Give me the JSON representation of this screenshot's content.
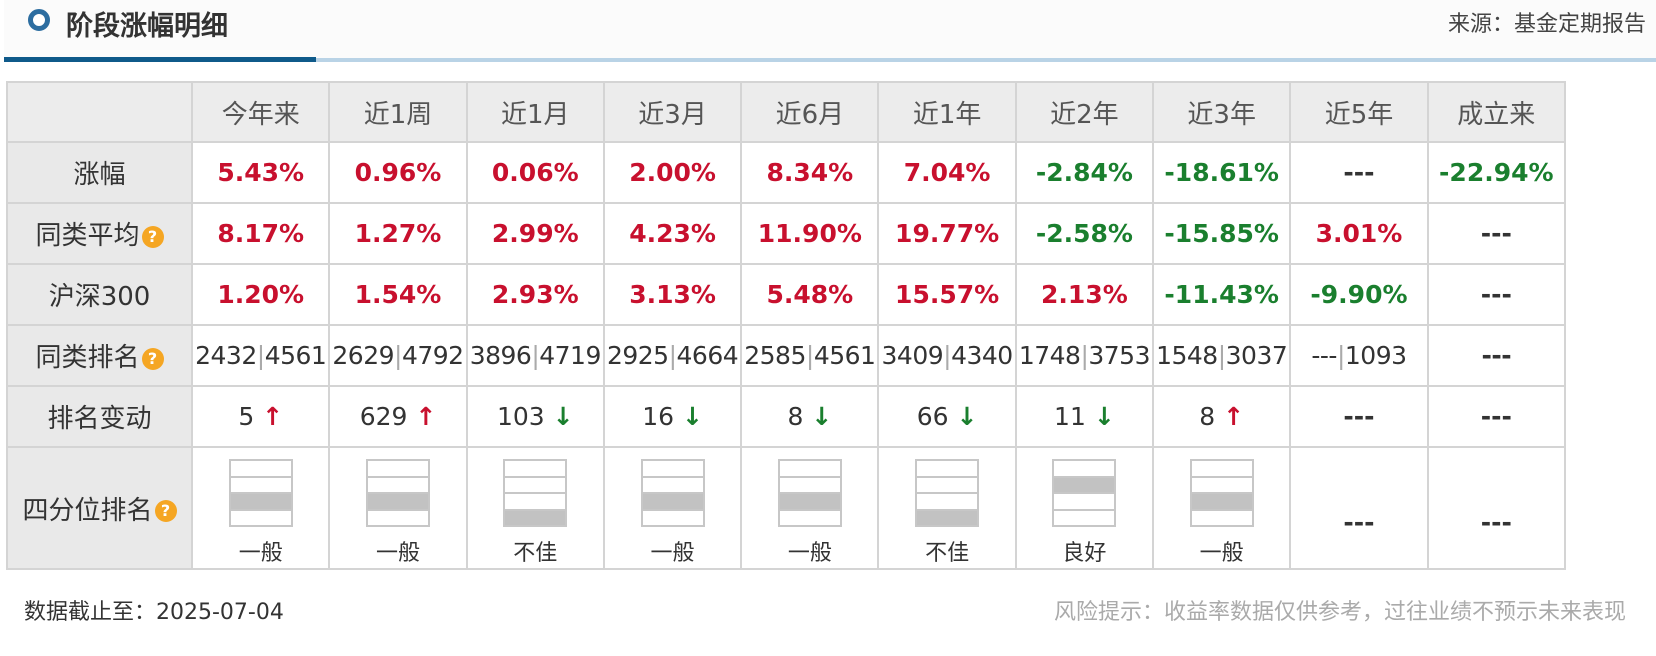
{
  "header": {
    "title": "阶段涨幅明细",
    "source": "来源：基金定期报告"
  },
  "columns": [
    "今年来",
    "近1周",
    "近1月",
    "近3月",
    "近6月",
    "近1年",
    "近2年",
    "近3年",
    "近5年",
    "成立来"
  ],
  "rows": {
    "gain": {
      "label": "涨幅",
      "values": [
        "5.43%",
        "0.96%",
        "0.06%",
        "2.00%",
        "8.34%",
        "7.04%",
        "-2.84%",
        "-18.61%",
        "---",
        "-22.94%"
      ]
    },
    "peer_avg": {
      "label": "同类平均",
      "values": [
        "8.17%",
        "1.27%",
        "2.99%",
        "4.23%",
        "11.90%",
        "19.77%",
        "-2.58%",
        "-15.85%",
        "3.01%",
        "---"
      ]
    },
    "hs300": {
      "label": "沪深300",
      "values": [
        "1.20%",
        "1.54%",
        "2.93%",
        "3.13%",
        "5.48%",
        "15.57%",
        "2.13%",
        "-11.43%",
        "-9.90%",
        "---"
      ]
    },
    "peer_rank": {
      "label": "同类排名",
      "values": [
        {
          "rank": "2432",
          "total": "4561"
        },
        {
          "rank": "2629",
          "total": "4792"
        },
        {
          "rank": "3896",
          "total": "4719"
        },
        {
          "rank": "2925",
          "total": "4664"
        },
        {
          "rank": "2585",
          "total": "4561"
        },
        {
          "rank": "3409",
          "total": "4340"
        },
        {
          "rank": "1748",
          "total": "3753"
        },
        {
          "rank": "1548",
          "total": "3037"
        },
        {
          "rank": "---",
          "total": "1093"
        },
        {
          "rank": "---",
          "total": ""
        }
      ]
    },
    "rank_change": {
      "label": "排名变动",
      "values": [
        {
          "value": "5",
          "dir": "up"
        },
        {
          "value": "629",
          "dir": "up"
        },
        {
          "value": "103",
          "dir": "down"
        },
        {
          "value": "16",
          "dir": "down"
        },
        {
          "value": "8",
          "dir": "down"
        },
        {
          "value": "66",
          "dir": "down"
        },
        {
          "value": "11",
          "dir": "down"
        },
        {
          "value": "8",
          "dir": "up"
        },
        {
          "value": "---",
          "dir": ""
        },
        {
          "value": "---",
          "dir": ""
        }
      ]
    },
    "quartile": {
      "label": "四分位排名",
      "values": [
        {
          "quartile": 3,
          "label": "一般"
        },
        {
          "quartile": 3,
          "label": "一般"
        },
        {
          "quartile": 4,
          "label": "不佳"
        },
        {
          "quartile": 3,
          "label": "一般"
        },
        {
          "quartile": 3,
          "label": "一般"
        },
        {
          "quartile": 4,
          "label": "不佳"
        },
        {
          "quartile": 2,
          "label": "良好"
        },
        {
          "quartile": 3,
          "label": "一般"
        },
        {
          "quartile": 0,
          "label": "---"
        },
        {
          "quartile": 0,
          "label": "---"
        }
      ]
    }
  },
  "icons": {
    "help": "?"
  },
  "arrows": {
    "up": "↑",
    "down": "↓"
  },
  "footer": {
    "as_of": "数据截止至：2025-07-04",
    "disclaimer": "风险提示：收益率数据仅供参考，过往业绩不预示未来表现"
  }
}
